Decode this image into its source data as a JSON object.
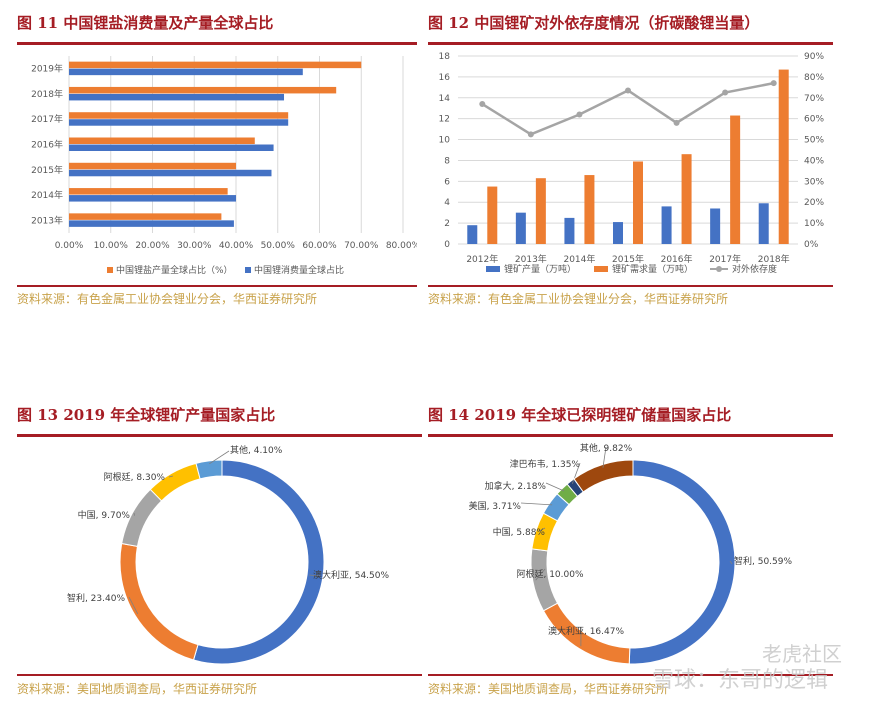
{
  "colors": {
    "title_red": "#a51d24",
    "source_gold": "#c8a24a",
    "blue": "#4472c4",
    "orange": "#ed7d31",
    "gray": "#a5a5a5",
    "yellow": "#ffc000",
    "lightblue": "#5b9bd5",
    "green": "#70ad47",
    "navy": "#264478",
    "brown": "#9e480e"
  },
  "panels": {
    "p11": {
      "title": "图 11 中国锂盐消费量及产量全球占比",
      "source": "资料来源：有色金属工业协会锂业分会，华西证券研究所"
    },
    "p12": {
      "title": "图 12 中国锂矿对外依存度情况（折碳酸锂当量）",
      "source": "资料来源：有色金属工业协会锂业分会，华西证券研究所"
    },
    "p13": {
      "title": "图 13 2019 年全球锂矿产量国家占比",
      "source": "资料来源：美国地质调查局，华西证券研究所"
    },
    "p14": {
      "title": "图 14 2019 年全球已探明锂矿储量国家占比",
      "source": "资料来源：美国地质调查局，华西证券研究所"
    }
  },
  "watermark": {
    "line1": "老虎社区",
    "line2": "雪球：东哥的逻辑"
  },
  "chart_data": [
    {
      "type": "bar",
      "orientation": "horizontal",
      "categories": [
        "2019年",
        "2018年",
        "2017年",
        "2016年",
        "2015年",
        "2014年",
        "2013年"
      ],
      "series": [
        {
          "name": "中国锂盐产量全球占比（%）",
          "color": "#ed7d31",
          "values": [
            70.0,
            64.0,
            52.5,
            44.5,
            40.0,
            38.0,
            36.5
          ]
        },
        {
          "name": "中国锂消费量全球占比",
          "color": "#4472c4",
          "values": [
            56.0,
            51.5,
            52.5,
            49.0,
            48.5,
            40.0,
            39.5
          ]
        }
      ],
      "x_ticks": [
        "0.00%",
        "10.00%",
        "20.00%",
        "30.00%",
        "40.00%",
        "50.00%",
        "60.00%",
        "70.00%",
        "80.00%"
      ],
      "xlim": [
        0,
        80
      ],
      "grid": true,
      "legend": "bottom"
    },
    {
      "type": "bar+line",
      "categories": [
        "2012年",
        "2013年",
        "2014年",
        "2015年",
        "2016年",
        "2017年",
        "2018年"
      ],
      "series": [
        {
          "name": "锂矿产量（万吨）",
          "type": "bar",
          "axis": "left",
          "color": "#4472c4",
          "values": [
            1.8,
            3.0,
            2.5,
            2.1,
            3.6,
            3.4,
            3.9
          ]
        },
        {
          "name": "锂矿需求量（万吨）",
          "type": "bar",
          "axis": "left",
          "color": "#ed7d31",
          "values": [
            5.5,
            6.3,
            6.6,
            7.9,
            8.6,
            12.3,
            16.7
          ]
        },
        {
          "name": "对外依存度",
          "type": "line",
          "axis": "right",
          "color": "#a5a5a5",
          "values": [
            67,
            52.5,
            62,
            73.5,
            58,
            72.5,
            77
          ]
        }
      ],
      "y_left_ticks": [
        "0",
        "2",
        "4",
        "6",
        "8",
        "10",
        "12",
        "14",
        "16",
        "18"
      ],
      "y_right_ticks": [
        "0%",
        "10%",
        "20%",
        "30%",
        "40%",
        "50%",
        "60%",
        "70%",
        "80%",
        "90%"
      ],
      "ylim_left": [
        0,
        18
      ],
      "ylim_right": [
        0,
        90
      ],
      "legend": "bottom"
    },
    {
      "type": "pie",
      "donut": true,
      "slices": [
        {
          "label": "澳大利亚",
          "value": 54.5,
          "text": "澳大利亚, 54.50%",
          "color": "#4472c4"
        },
        {
          "label": "智利",
          "value": 23.4,
          "text": "智利, 23.40%",
          "color": "#ed7d31"
        },
        {
          "label": "中国",
          "value": 9.7,
          "text": "中国, 9.70%",
          "color": "#a5a5a5"
        },
        {
          "label": "阿根廷",
          "value": 8.3,
          "text": "阿根廷, 8.30%",
          "color": "#ffc000"
        },
        {
          "label": "其他",
          "value": 4.1,
          "text": "其他, 4.10%",
          "color": "#5b9bd5"
        }
      ]
    },
    {
      "type": "pie",
      "donut": true,
      "slices": [
        {
          "label": "智利",
          "value": 50.59,
          "text": "智利, 50.59%",
          "color": "#4472c4"
        },
        {
          "label": "澳大利亚",
          "value": 16.47,
          "text": "澳大利亚, 16.47%",
          "color": "#ed7d31"
        },
        {
          "label": "阿根廷",
          "value": 10.0,
          "text": "阿根廷, 10.00%",
          "color": "#a5a5a5"
        },
        {
          "label": "中国",
          "value": 5.88,
          "text": "中国, 5.88%",
          "color": "#ffc000"
        },
        {
          "label": "美国",
          "value": 3.71,
          "text": "美国, 3.71%",
          "color": "#5b9bd5"
        },
        {
          "label": "加拿大",
          "value": 2.18,
          "text": "加拿大, 2.18%",
          "color": "#70ad47"
        },
        {
          "label": "津巴布韦",
          "value": 1.35,
          "text": "津巴布韦, 1.35%",
          "color": "#264478"
        },
        {
          "label": "其他",
          "value": 9.82,
          "text": "其他, 9.82%",
          "color": "#9e480e"
        }
      ]
    }
  ]
}
